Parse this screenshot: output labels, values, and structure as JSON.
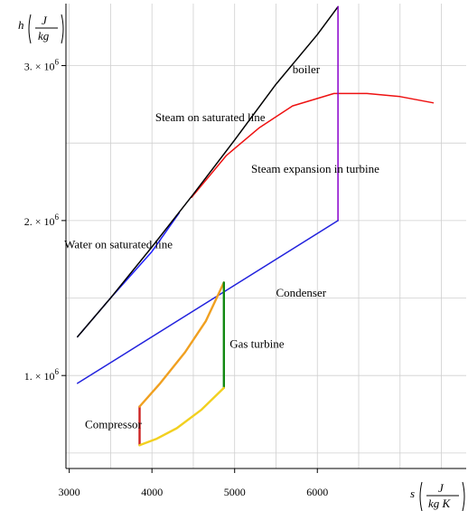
{
  "chart_data": {
    "type": "line",
    "title": "",
    "xlabel": {
      "symbol": "s",
      "unit_num": "J",
      "unit_den": "kg K"
    },
    "ylabel": {
      "symbol": "h",
      "unit_num": "J",
      "unit_den": "kg"
    },
    "xlim": [
      2960,
      7800
    ],
    "ylim": [
      400000,
      3400000
    ],
    "grid": true,
    "x_ticks": [
      3000,
      4000,
      5000,
      6000
    ],
    "x_tick_labels": [
      "3000",
      "4000",
      "5000",
      "6000"
    ],
    "y_ticks": [
      1000000,
      2000000,
      3000000
    ],
    "y_tick_labels": [
      {
        "base": "1. × 10",
        "exp": "6"
      },
      {
        "base": "2. × 10",
        "exp": "6"
      },
      {
        "base": "3. × 10",
        "exp": "6"
      }
    ],
    "colors": {
      "water_saturated": "#1f1fff",
      "steam_saturated": "#ee1111",
      "boiler": "#000000",
      "turbine_expansion": "#8800cc",
      "condenser": "#2222dd",
      "compressor": "#cc2222",
      "gas_heating": "#f0a020",
      "gas_turbine": "#118811",
      "gas_cooling": "#f2d020"
    },
    "series": [
      {
        "key": "water_saturated",
        "points": [
          [
            3100,
            1250000
          ],
          [
            3500,
            1500000
          ],
          [
            4000,
            1800000
          ],
          [
            4330,
            2050000
          ]
        ]
      },
      {
        "key": "steam_saturated",
        "points": [
          [
            4480,
            2150000
          ],
          [
            4900,
            2420000
          ],
          [
            5300,
            2600000
          ],
          [
            5700,
            2740000
          ],
          [
            6200,
            2820000
          ],
          [
            6600,
            2820000
          ],
          [
            7000,
            2800000
          ],
          [
            7400,
            2760000
          ]
        ]
      },
      {
        "key": "boiler",
        "points": [
          [
            3100,
            1250000
          ],
          [
            3500,
            1500000
          ],
          [
            4000,
            1830000
          ],
          [
            4500,
            2170000
          ],
          [
            5000,
            2520000
          ],
          [
            5500,
            2880000
          ],
          [
            6000,
            3200000
          ],
          [
            6250,
            3380000
          ]
        ]
      },
      {
        "key": "turbine_expansion",
        "points": [
          [
            6250,
            3380000
          ],
          [
            6250,
            2000000
          ]
        ]
      },
      {
        "key": "condenser",
        "points": [
          [
            6250,
            2000000
          ],
          [
            3100,
            950000
          ]
        ]
      },
      {
        "key": "compressor",
        "points": [
          [
            3850,
            550000
          ],
          [
            3850,
            800000
          ]
        ]
      },
      {
        "key": "gas_heating",
        "points": [
          [
            3850,
            800000
          ],
          [
            4100,
            950000
          ],
          [
            4400,
            1150000
          ],
          [
            4650,
            1350000
          ],
          [
            4870,
            1600000
          ]
        ]
      },
      {
        "key": "gas_turbine",
        "points": [
          [
            4870,
            1600000
          ],
          [
            4870,
            920000
          ]
        ]
      },
      {
        "key": "gas_cooling",
        "points": [
          [
            4870,
            920000
          ],
          [
            4600,
            780000
          ],
          [
            4300,
            660000
          ],
          [
            4050,
            590000
          ],
          [
            3850,
            550000
          ]
        ]
      }
    ],
    "annotations": [
      {
        "text": "boiler",
        "x": 5700,
        "y": 2950000
      },
      {
        "text": "Steam on saturated line",
        "x": 4040,
        "y": 2640000
      },
      {
        "text": "Steam expansion in turbine",
        "x": 5200,
        "y": 2310000
      },
      {
        "text": "Water on saturated line",
        "x": 2940,
        "y": 1820000
      },
      {
        "text": "Condenser",
        "x": 5500,
        "y": 1510000
      },
      {
        "text": "Gas turbine",
        "x": 4940,
        "y": 1180000
      },
      {
        "text": "Compressor",
        "x": 3190,
        "y": 660000
      }
    ]
  }
}
